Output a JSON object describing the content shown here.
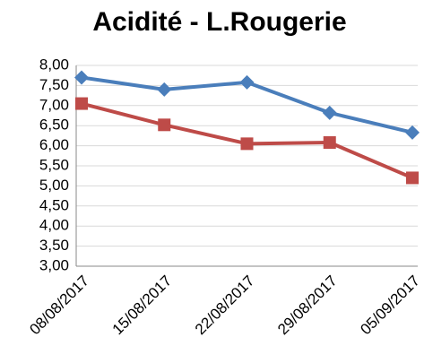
{
  "chart_data": {
    "type": "line",
    "title": "Acidité - L.Rougerie",
    "categories": [
      "08/08/2017",
      "15/08/2017",
      "22/08/2017",
      "29/08/2017",
      "05/09/2017"
    ],
    "series": [
      {
        "color": "#4a7ebb",
        "marker": "diamond",
        "values": [
          7.7,
          7.4,
          7.58,
          6.82,
          6.33
        ]
      },
      {
        "color": "#be4b48",
        "marker": "square",
        "values": [
          7.05,
          6.52,
          6.05,
          6.08,
          5.2
        ]
      }
    ],
    "ylim": [
      3,
      8
    ],
    "yticks": [
      {
        "value": 3,
        "label": "3,00"
      },
      {
        "value": 3.5,
        "label": "3,50"
      },
      {
        "value": 4,
        "label": "4,00"
      },
      {
        "value": 4.5,
        "label": "4,50"
      },
      {
        "value": 5,
        "label": "5,00"
      },
      {
        "value": 5.5,
        "label": "5,50"
      },
      {
        "value": 6,
        "label": "6,00"
      },
      {
        "value": 6.5,
        "label": "6,50"
      },
      {
        "value": 7,
        "label": "7,00"
      },
      {
        "value": 7.5,
        "label": "7,50"
      },
      {
        "value": 8,
        "label": "8,00"
      }
    ],
    "grid": true
  }
}
